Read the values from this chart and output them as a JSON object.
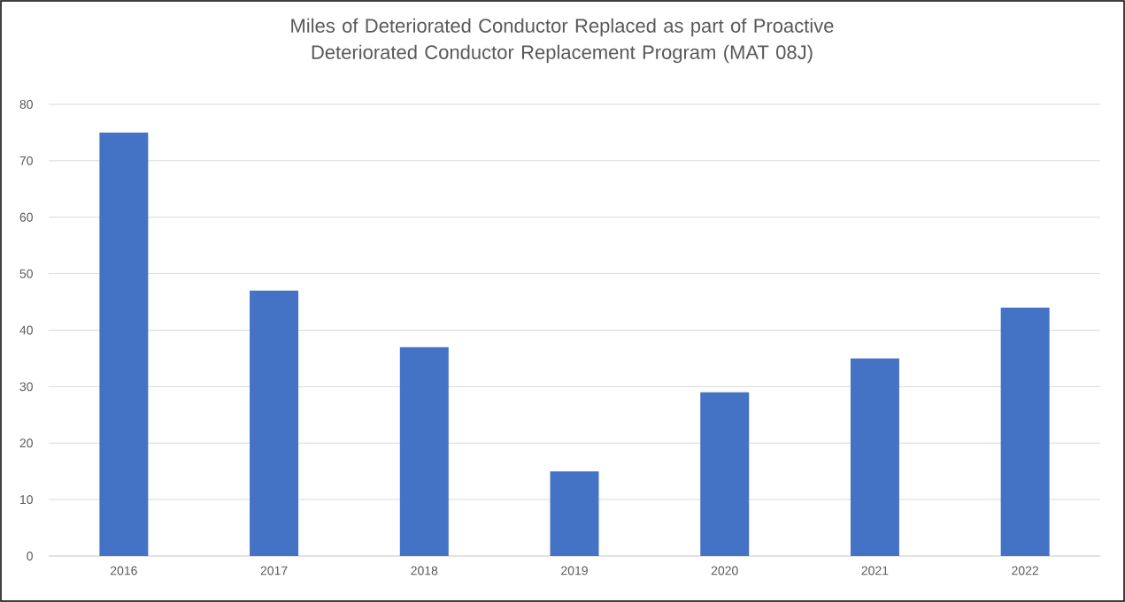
{
  "chart_data": {
    "type": "bar",
    "title": "Miles of Deteriorated Conductor Replaced as part of Proactive Deteriorated Conductor Replacement Program (MAT 08J)",
    "categories": [
      "2016",
      "2017",
      "2018",
      "2019",
      "2020",
      "2021",
      "2022"
    ],
    "values": [
      75,
      47,
      37,
      15,
      29,
      35,
      44
    ],
    "color": "#4472c4",
    "ylim": [
      0,
      80
    ],
    "yticks": [
      0,
      10,
      20,
      30,
      40,
      50,
      60,
      70,
      80
    ],
    "grid": "y"
  }
}
